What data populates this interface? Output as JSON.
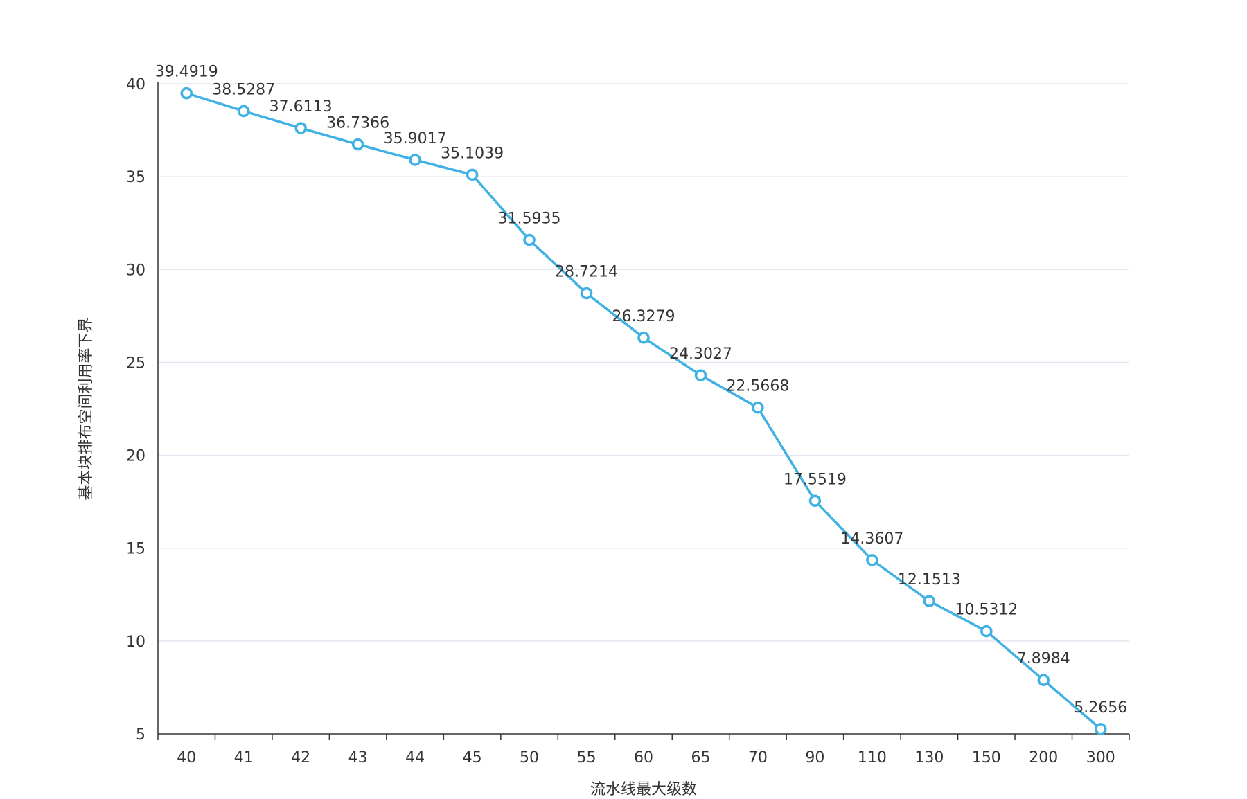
{
  "chart_data": {
    "type": "line",
    "xlabel": "流水线最大级数",
    "ylabel": "基本块排布空间利用率下界",
    "categories": [
      "40",
      "41",
      "42",
      "43",
      "44",
      "45",
      "50",
      "55",
      "60",
      "65",
      "70",
      "90",
      "110",
      "130",
      "150",
      "200",
      "300"
    ],
    "values": [
      39.4919,
      38.5287,
      37.6113,
      36.7366,
      35.9017,
      35.1039,
      31.5935,
      28.7214,
      26.3279,
      24.3027,
      22.5668,
      17.5519,
      14.3607,
      12.1513,
      10.5312,
      7.8984,
      5.2656
    ],
    "value_labels": [
      "39.4919",
      "38.5287",
      "37.6113",
      "36.7366",
      "35.9017",
      "35.1039",
      "31.5935",
      "28.7214",
      "26.3279",
      "24.3027",
      "22.5668",
      "17.5519",
      "14.3607",
      "12.1513",
      "10.5312",
      "7.8984",
      "5.2656"
    ],
    "ylim": [
      5,
      40
    ],
    "yticks": [
      "5",
      "10",
      "15",
      "20",
      "25",
      "30",
      "35",
      "40"
    ],
    "grid": true,
    "line_color": "#3fb1e3"
  }
}
